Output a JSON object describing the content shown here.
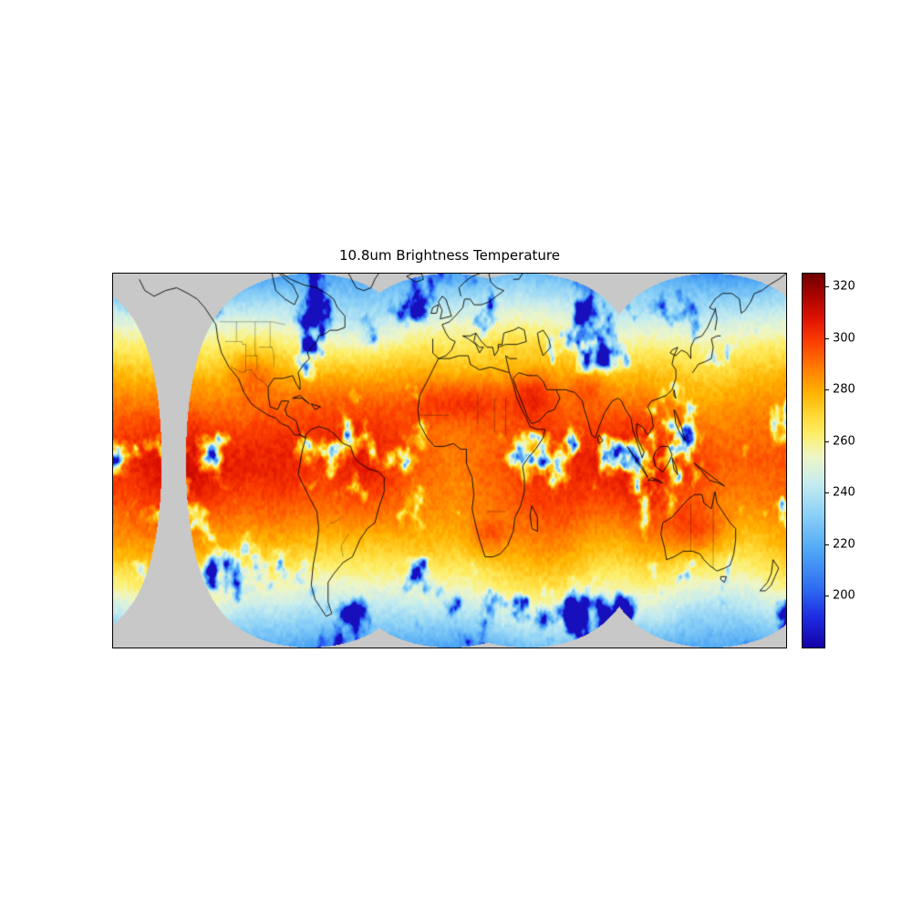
{
  "chart_data": {
    "type": "heatmap",
    "title": "10.8um Brightness Temperature",
    "projection": "equirectangular-world-composite",
    "extent": {
      "lon_min": -180,
      "lon_max": 180,
      "lat_min": -66,
      "lat_max": 66
    },
    "grid": "off",
    "colorbar": {
      "position": "right",
      "vmin": 180,
      "vmax": 325,
      "ticks": [
        320,
        300,
        280,
        260,
        240,
        220,
        200
      ],
      "colormap_stops": [
        [
          0.0,
          "#1400a8"
        ],
        [
          0.08,
          "#1d2be0"
        ],
        [
          0.16,
          "#2f6df2"
        ],
        [
          0.26,
          "#4fa8f5"
        ],
        [
          0.36,
          "#8ed2f6"
        ],
        [
          0.44,
          "#c6ecef"
        ],
        [
          0.51,
          "#eef6c8"
        ],
        [
          0.57,
          "#fdef6a"
        ],
        [
          0.62,
          "#ffd937"
        ],
        [
          0.68,
          "#ffb300"
        ],
        [
          0.75,
          "#ff7a00"
        ],
        [
          0.82,
          "#fb3c00"
        ],
        [
          0.88,
          "#de1200"
        ],
        [
          0.94,
          "#ab0400"
        ],
        [
          1.0,
          "#6e0000"
        ]
      ]
    },
    "no_data_color": "#c8c8c8",
    "background_color": "#ffffff",
    "features": [
      "coastlines",
      "country-borders"
    ],
    "value_summary": {
      "tropical_clear_ocean_K": 295,
      "desert_hot_land_K": 315,
      "deep_cloud_tops_K": 205,
      "midlatitude_ocean_K": 255,
      "polar_edge_K": 225
    }
  }
}
